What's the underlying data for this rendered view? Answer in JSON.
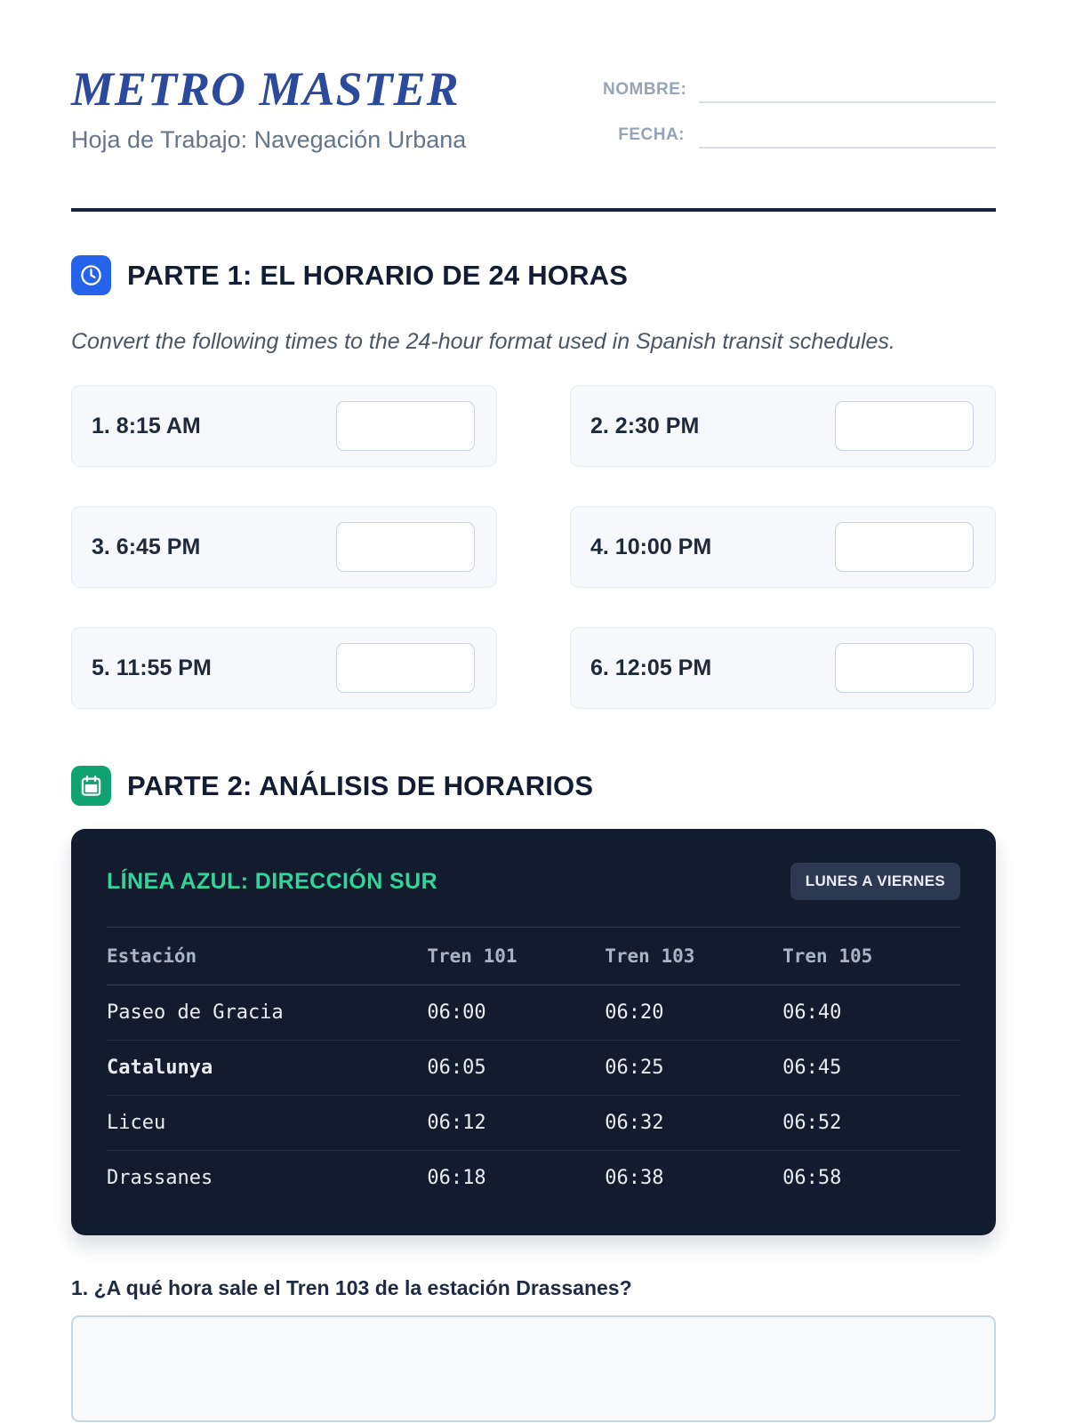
{
  "colors": {
    "brand_blue": "#2b4a9b",
    "icon_blue": "#2563eb",
    "icon_green": "#0ea371",
    "panel_navy": "#131c2e",
    "accent_green": "#34d399",
    "highlight_amber": "#f0b429"
  },
  "header": {
    "title": "METRO MASTER",
    "subtitle": "Hoja de Trabajo: Navegación Urbana",
    "fields": [
      {
        "label": "NOMBRE:",
        "value": ""
      },
      {
        "label": "FECHA:",
        "value": ""
      }
    ]
  },
  "part1": {
    "icon": "clock-icon",
    "title": "PARTE 1: EL HORARIO DE 24 HORAS",
    "instructions": "Convert the following times to the 24-hour format used in Spanish transit schedules.",
    "exercises": [
      {
        "label": "1. 8:15 AM",
        "answer": ""
      },
      {
        "label": "2. 2:30 PM",
        "answer": ""
      },
      {
        "label": "3. 6:45 PM",
        "answer": ""
      },
      {
        "label": "4. 10:00 PM",
        "answer": ""
      },
      {
        "label": "5. 11:55 PM",
        "answer": ""
      },
      {
        "label": "6. 12:05 PM",
        "answer": ""
      }
    ]
  },
  "part2": {
    "icon": "calendar-icon",
    "title": "PARTE 2: ANÁLISIS DE HORARIOS",
    "schedule": {
      "line_title": "LÍNEA AZUL: DIRECCIÓN SUR",
      "badge": "LUNES A VIERNES",
      "columns": [
        "Estación",
        "Tren 101",
        "Tren 103",
        "Tren 105"
      ],
      "rows": [
        {
          "station": "Paseo de Gracia",
          "bold": false,
          "times": [
            {
              "value": "06:00",
              "highlight": false
            },
            {
              "value": "06:20",
              "highlight": true
            },
            {
              "value": "06:40",
              "highlight": false
            }
          ]
        },
        {
          "station": "Catalunya",
          "bold": true,
          "times": [
            {
              "value": "06:05",
              "highlight": false
            },
            {
              "value": "06:25",
              "highlight": false
            },
            {
              "value": "06:45",
              "highlight": false
            }
          ]
        },
        {
          "station": "Liceu",
          "bold": false,
          "times": [
            {
              "value": "06:12",
              "highlight": false
            },
            {
              "value": "06:32",
              "highlight": false
            },
            {
              "value": "06:52",
              "highlight": false
            }
          ]
        },
        {
          "station": "Drassanes",
          "bold": false,
          "times": [
            {
              "value": "06:18",
              "highlight": false
            },
            {
              "value": "06:38",
              "highlight": true
            },
            {
              "value": "06:58",
              "highlight": false
            }
          ]
        }
      ]
    },
    "questions": [
      {
        "label": "1. ¿A qué hora sale el Tren 103 de la estación Drassanes?",
        "answer": ""
      }
    ]
  }
}
